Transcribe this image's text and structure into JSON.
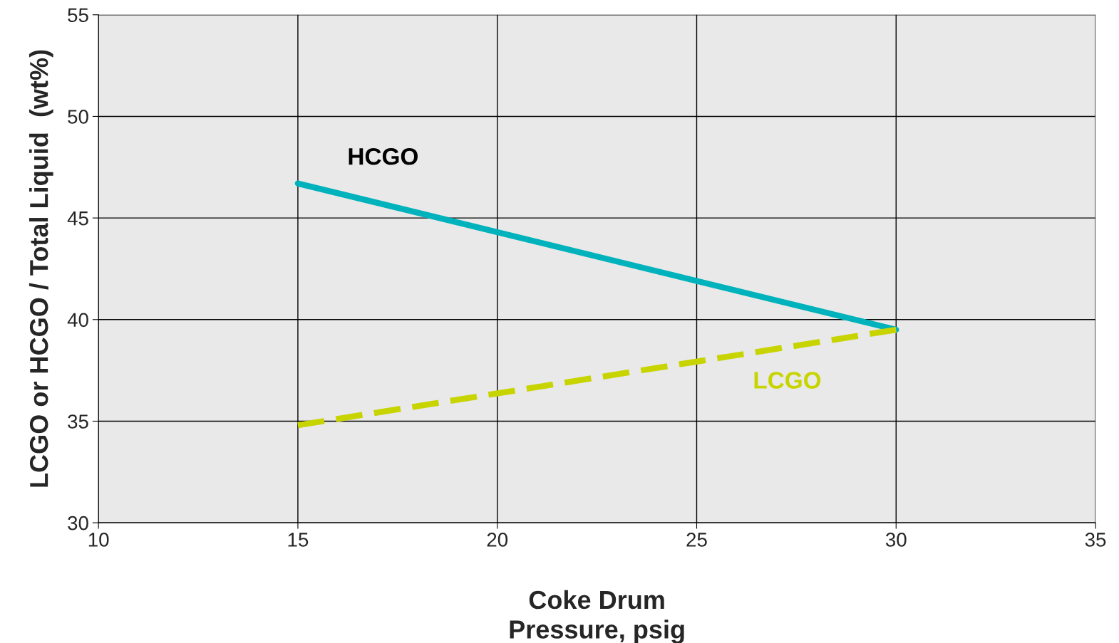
{
  "chart_data": {
    "type": "line",
    "xlabel": "Coke Drum\nPressure, psig",
    "ylabel": "LCGO or HCGO / Total Liquid  (wt%)",
    "x": [
      15,
      30
    ],
    "series": [
      {
        "name": "HCGO",
        "color": "#00b2bb",
        "values": [
          46.7,
          39.5
        ],
        "line_style": "solid"
      },
      {
        "name": "LCGO",
        "color": "#c8d400",
        "values": [
          34.8,
          39.5
        ],
        "line_style": "dashed"
      }
    ],
    "xlim": [
      10,
      35
    ],
    "xticks": [
      10,
      15,
      20,
      25,
      30,
      35
    ],
    "ylim": [
      30,
      55
    ],
    "yticks": [
      30,
      35,
      40,
      45,
      50,
      55
    ],
    "grid": true,
    "legend": false,
    "marker": "none"
  }
}
